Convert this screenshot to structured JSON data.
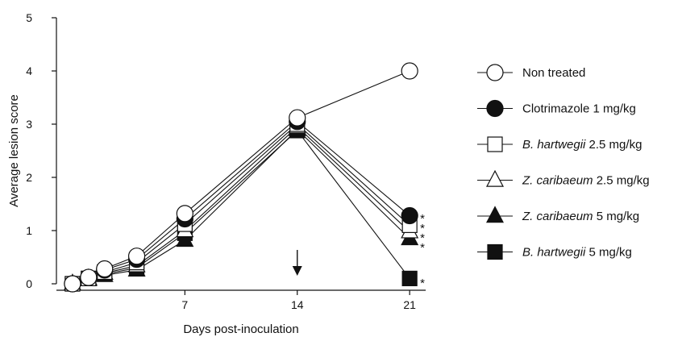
{
  "chart_data": {
    "type": "line",
    "xlabel": "Days post-inoculation",
    "ylabel": "Average lesion score",
    "xlim": [
      -1,
      23
    ],
    "ylim": [
      0,
      5
    ],
    "xticks": [
      "7",
      "14",
      "21"
    ],
    "yticks": [
      "0",
      "1",
      "2",
      "3",
      "4",
      "5"
    ],
    "grid": false,
    "legend_position": "right",
    "annotations": {
      "arrow_at_day": 14,
      "significance_marker": "*",
      "significance_count_day21": 5
    },
    "series": [
      {
        "name": "Non treated",
        "name_italic": "",
        "name_rest": "Non treated",
        "marker": "circle-open",
        "x": [
          0,
          1,
          2,
          4,
          7,
          14,
          21
        ],
        "y": [
          0,
          0.12,
          0.28,
          0.52,
          1.32,
          3.12,
          4.0
        ]
      },
      {
        "name": "Clotrimazole 1 mg/kg",
        "name_italic": "",
        "name_rest": "Clotrimazole 1 mg/kg",
        "marker": "circle-filled",
        "x": [
          0,
          1,
          2,
          4,
          7,
          14,
          21
        ],
        "y": [
          0,
          0.12,
          0.26,
          0.46,
          1.22,
          3.05,
          1.28
        ]
      },
      {
        "name": "B. hartwegii 2.5 mg/kg",
        "name_italic": "B. hartwegii",
        "name_rest": " 2.5 mg/kg",
        "marker": "square-open",
        "x": [
          0,
          1,
          2,
          4,
          7,
          14,
          21
        ],
        "y": [
          0,
          0.1,
          0.22,
          0.4,
          1.12,
          3.0,
          1.1
        ]
      },
      {
        "name": "Z. caribaeum 2.5 mg/kg",
        "name_italic": "Z. caribaeum",
        "name_rest": " 2.5 mg/kg",
        "marker": "triangle-open",
        "x": [
          0,
          1,
          2,
          4,
          7,
          14,
          21
        ],
        "y": [
          0,
          0.1,
          0.2,
          0.34,
          1.0,
          2.95,
          0.98
        ]
      },
      {
        "name": "Z. caribaeum 5 mg/kg",
        "name_italic": "Z. caribaeum",
        "name_rest": " 5 mg/kg",
        "marker": "triangle-filled",
        "x": [
          0,
          1,
          2,
          4,
          7,
          14,
          21
        ],
        "y": [
          0,
          0.08,
          0.16,
          0.26,
          0.82,
          2.9,
          0.85
        ]
      },
      {
        "name": "B. hartwegii 5 mg/kg",
        "name_italic": "B. hartwegii",
        "name_rest": " 5 mg/kg",
        "marker": "square-filled",
        "x": [
          0,
          1,
          2,
          4,
          7,
          14,
          21
        ],
        "y": [
          0,
          0.1,
          0.18,
          0.3,
          0.95,
          2.88,
          0.1
        ]
      }
    ]
  },
  "colors": {
    "ink": "#111111",
    "background": "#ffffff"
  }
}
